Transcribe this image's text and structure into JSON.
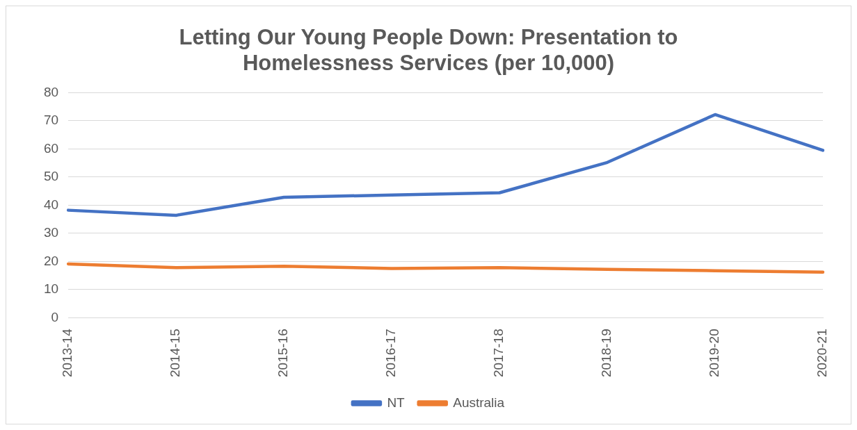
{
  "chart_data": {
    "type": "line",
    "title": "Letting Our Young People Down: Presentation to Homelessness Services (per 10,000)",
    "categories": [
      "2013-14",
      "2014-15",
      "2015-16",
      "2016-17",
      "2017-18",
      "2018-19",
      "2019-20",
      "2020-21"
    ],
    "series": [
      {
        "name": "NT",
        "color": "#4472c4",
        "values": [
          38.2,
          36.4,
          42.8,
          43.6,
          44.4,
          55.2,
          72.2,
          59.5
        ]
      },
      {
        "name": "Australia",
        "color": "#ed7d31",
        "values": [
          19.1,
          17.8,
          18.3,
          17.5,
          17.8,
          17.2,
          16.7,
          16.2
        ]
      }
    ],
    "ylim": [
      0,
      80
    ],
    "yticks": [
      0,
      10,
      20,
      30,
      40,
      50,
      60,
      70,
      80
    ],
    "grid": "y",
    "legend": "bottom",
    "marker": "none",
    "line_style": "solid"
  }
}
